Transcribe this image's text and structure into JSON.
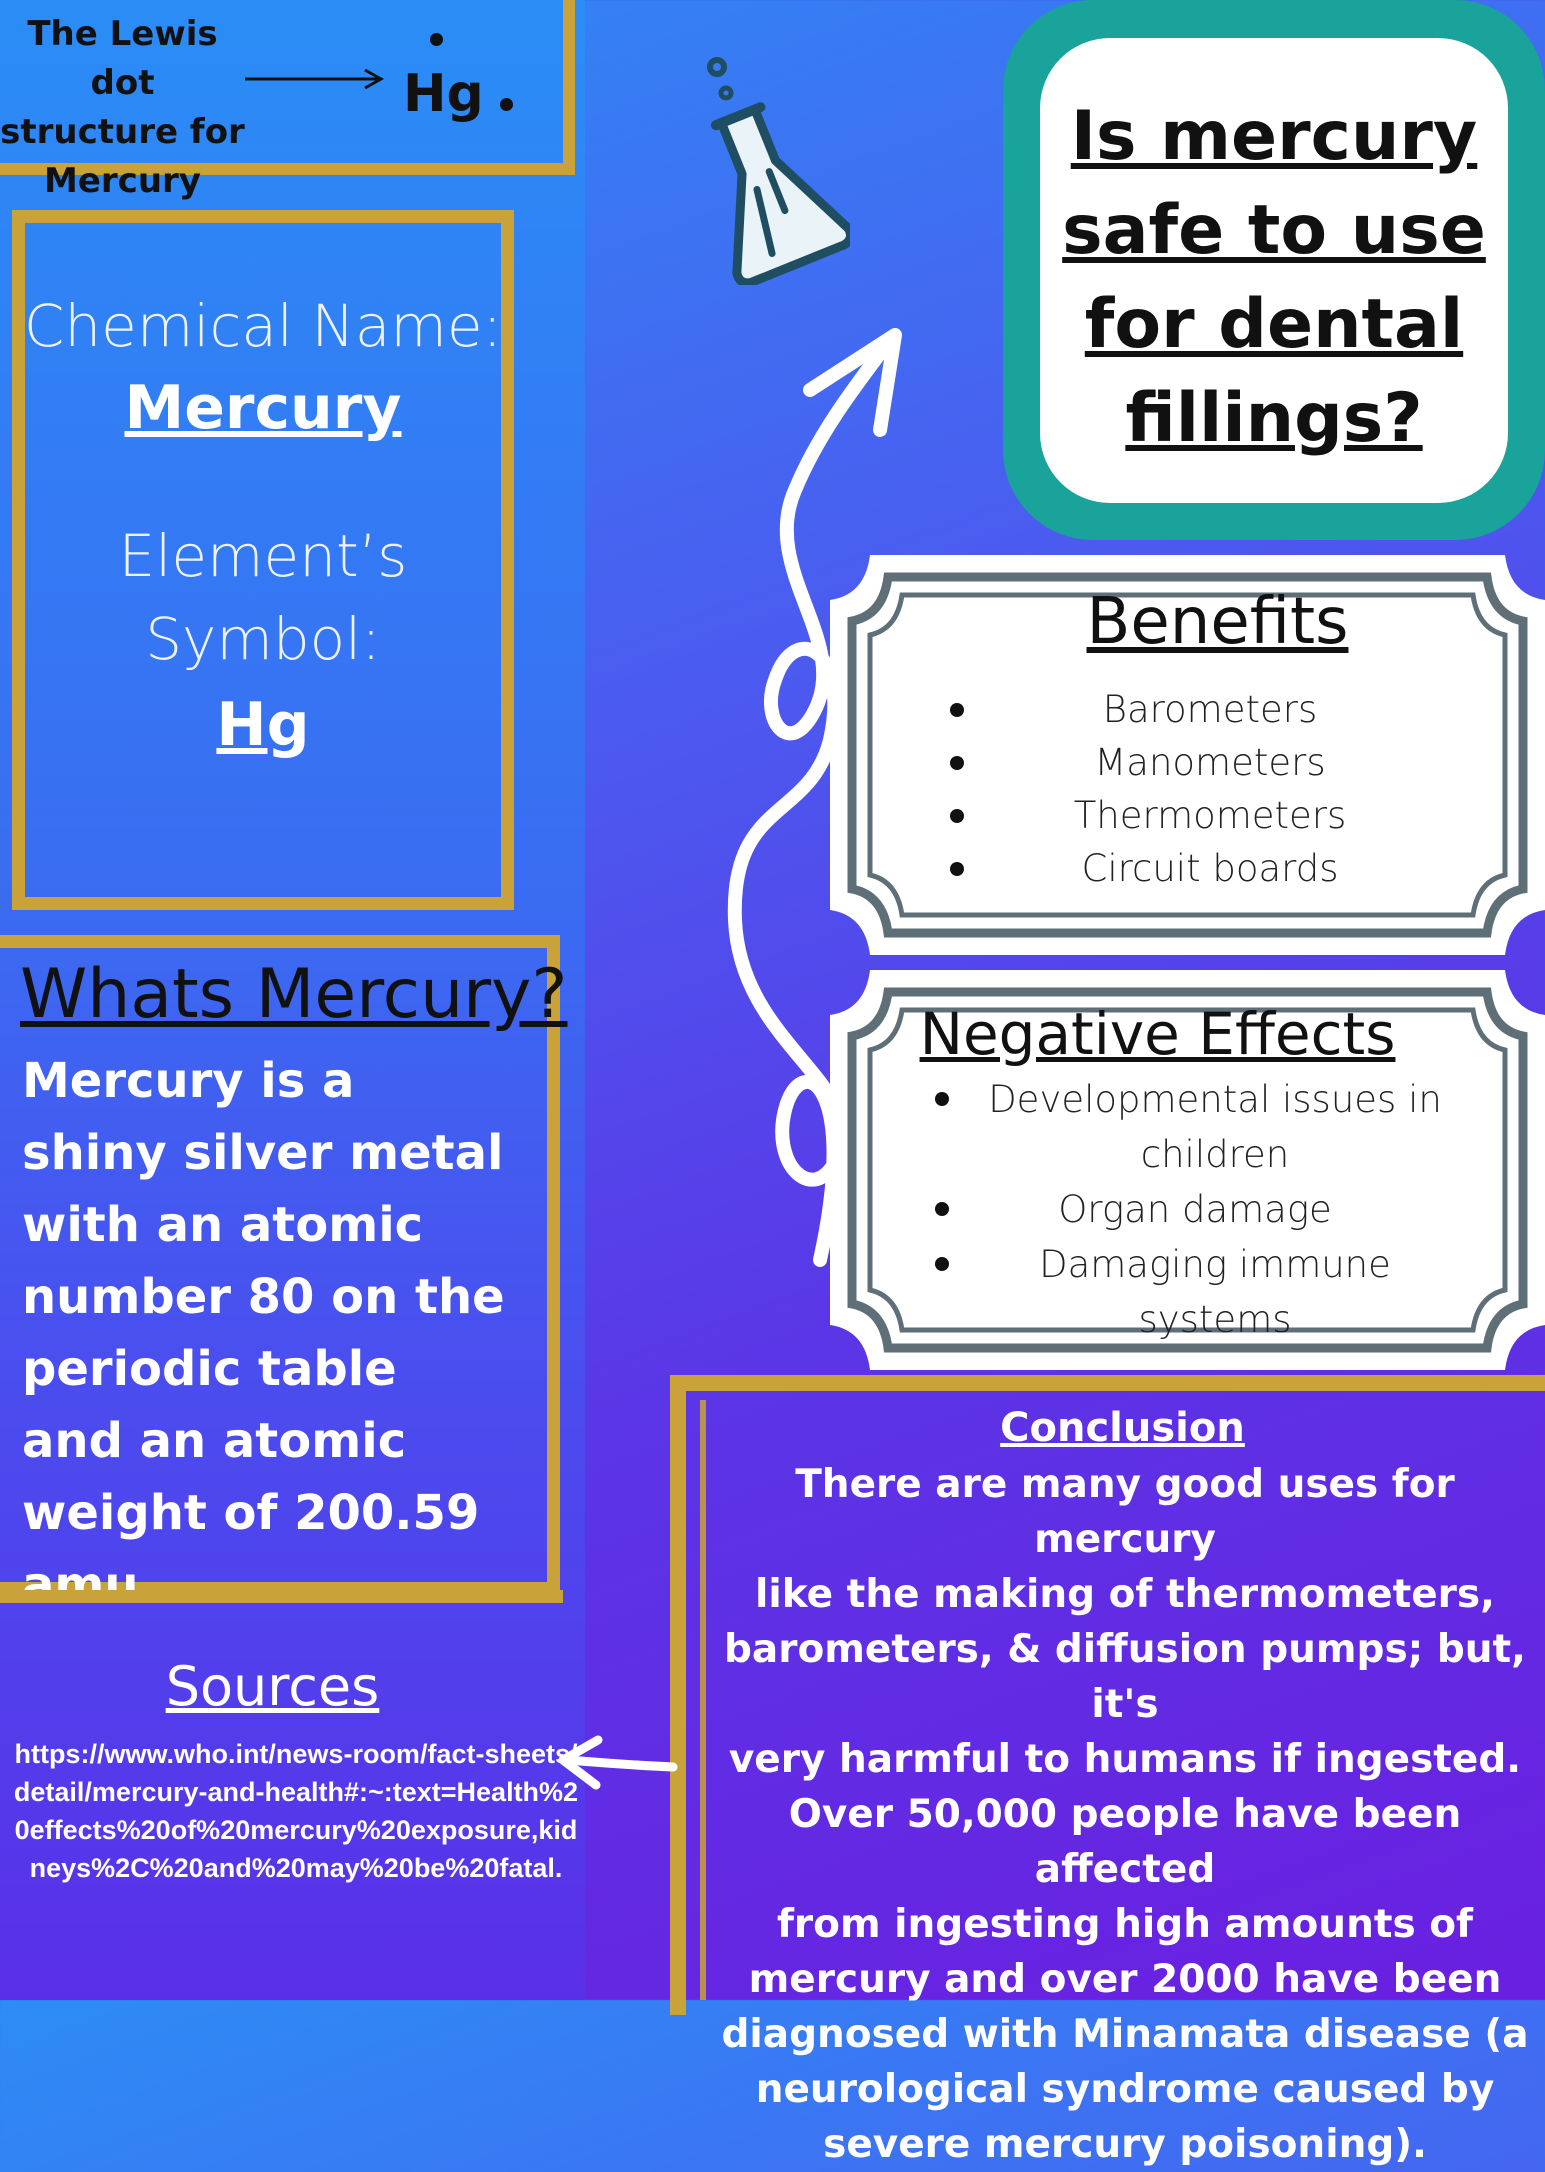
{
  "lewis": {
    "label_lines": [
      "The Lewis dot",
      "structure for",
      "Mercury"
    ],
    "symbol": "Hg"
  },
  "chemical": {
    "name_label": "Chemical Name:",
    "name_value": "Mercury",
    "symbol_label_1": "Element’s",
    "symbol_label_2": "Symbol:",
    "symbol_value": "Hg"
  },
  "whats_mercury": {
    "title": "Whats Mercury?",
    "body_lines": [
      "Mercury is a",
      "shiny silver metal",
      "with an atomic",
      "number 80 on the",
      "periodic table",
      "and an atomic",
      "weight of 200.59",
      "amu"
    ]
  },
  "sources": {
    "title": "Sources",
    "url": "https://www.who.int/news-room/fact-sheets/detail/mercury-and-health#:~:text=Health%20effects%20of%20mercury%20exposure,kidneys%2C%20and%20may%20be%20fatal."
  },
  "question": {
    "lines": [
      "Is mercury",
      "safe to use",
      "for dental",
      "fillings?"
    ]
  },
  "benefits": {
    "title": "Benefits",
    "items": [
      "Barometers",
      "Manometers",
      "Thermometers",
      "Circuit boards"
    ]
  },
  "negative": {
    "title": "Negative Effects",
    "items": [
      "Developmental issues in children",
      "Organ damage",
      "Damaging immune systems"
    ]
  },
  "conclusion": {
    "title": "Conclusion",
    "lines": [
      "There are many good uses for mercury",
      "like the making of thermometers,",
      "barometers, & diffusion pumps; but, it's",
      "very harmful to humans if ingested.",
      "Over 50,000 people have been affected",
      "from ingesting high amounts of",
      "mercury and over 2000  have been",
      "diagnosed with  Minamata disease (a",
      "neurological syndrome caused by",
      "severe mercury poisoning)."
    ]
  },
  "colors": {
    "gold": "#c9a23a",
    "teal": "#1aa39a",
    "ticket_border": "#5f6f78"
  }
}
